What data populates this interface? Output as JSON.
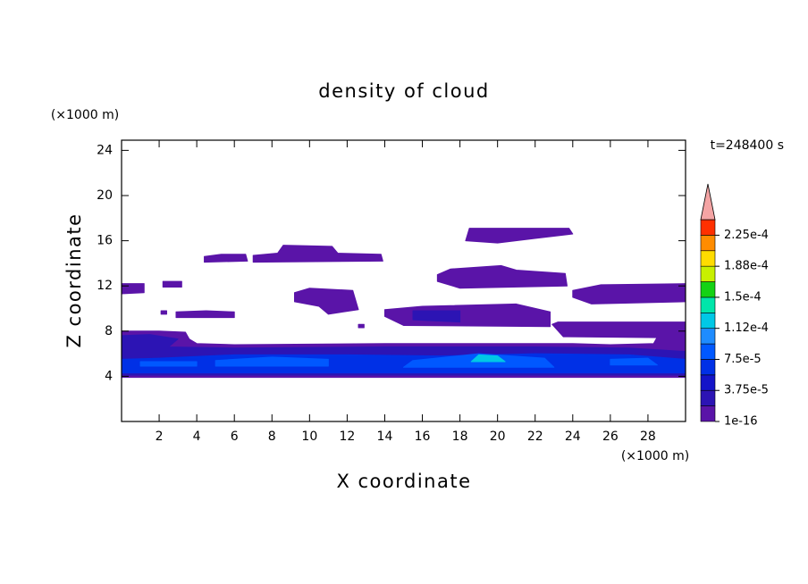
{
  "chart_data": {
    "type": "contour",
    "title": "density of cloud",
    "x_label": "X coordinate",
    "y_label": "Z coordinate",
    "x_unit": "(×1000 m)",
    "y_unit": "(×1000 m)",
    "time_label": "t=248400 s",
    "xlim": [
      0,
      30
    ],
    "ylim": [
      0,
      24.9
    ],
    "xticks": [
      2,
      4,
      6,
      8,
      10,
      12,
      14,
      16,
      18,
      20,
      22,
      24,
      26,
      28
    ],
    "yticks": [
      4,
      8,
      12,
      16,
      20,
      24
    ],
    "colorbar": {
      "levels": [
        1e-16,
        1.875e-05,
        3.75e-05,
        5.625e-05,
        7.5e-05,
        9.375e-05,
        0.0001125,
        0.00013125,
        0.00015,
        0.00016875,
        0.0001875,
        0.00020625,
        0.000225,
        0.00024375
      ],
      "colors": [
        "#5a14a8",
        "#2c14b4",
        "#1414c8",
        "#0030e6",
        "#0058ff",
        "#1e8cff",
        "#00c8e6",
        "#00e6aa",
        "#14d214",
        "#c8f000",
        "#ffdc00",
        "#ff8c00",
        "#ff3000"
      ],
      "extend_color": "#f4a4a4",
      "ticks": [
        {
          "value": 1e-16,
          "label": "1e-16"
        },
        {
          "value": 3.75e-05,
          "label": "3.75e-5"
        },
        {
          "value": 7.5e-05,
          "label": "7.5e-5"
        },
        {
          "value": 0.0001125,
          "label": "1.12e-4"
        },
        {
          "value": 0.00015,
          "label": "1.5e-4"
        },
        {
          "value": 0.0001875,
          "label": "1.88e-4"
        },
        {
          "value": 0.000225,
          "label": "2.25e-4"
        }
      ]
    },
    "regions": [
      {
        "value": 1e-05,
        "points": [
          [
            0,
            3.9
          ],
          [
            30,
            3.9
          ],
          [
            30,
            7.9
          ],
          [
            28.6,
            7.8
          ],
          [
            28.3,
            6.9
          ],
          [
            26,
            6.8
          ],
          [
            24,
            6.9
          ],
          [
            14,
            6.9
          ],
          [
            6,
            6.8
          ],
          [
            4,
            6.9
          ],
          [
            3.6,
            7.3
          ],
          [
            3.4,
            7.9
          ],
          [
            2,
            8.0
          ],
          [
            0,
            8.0
          ]
        ]
      },
      {
        "value": 3e-05,
        "points": [
          [
            0,
            4.1
          ],
          [
            30,
            4.1
          ],
          [
            30,
            6.2
          ],
          [
            27,
            6.5
          ],
          [
            22,
            6.6
          ],
          [
            14,
            6.6
          ],
          [
            6,
            6.5
          ],
          [
            2.5,
            6.6
          ],
          [
            3,
            7.3
          ],
          [
            1.5,
            7.7
          ],
          [
            0,
            7.6
          ]
        ]
      },
      {
        "value": 6e-05,
        "points": [
          [
            0,
            4.3
          ],
          [
            30,
            4.3
          ],
          [
            30,
            5.5
          ],
          [
            27,
            5.9
          ],
          [
            22,
            6.0
          ],
          [
            17,
            5.8
          ],
          [
            12,
            5.9
          ],
          [
            6,
            5.9
          ],
          [
            2,
            5.6
          ],
          [
            0,
            5.5
          ]
        ]
      },
      {
        "value": 8e-05,
        "points": [
          [
            1,
            4.9
          ],
          [
            4,
            4.9
          ],
          [
            4,
            5.3
          ],
          [
            1,
            5.3
          ]
        ]
      },
      {
        "value": 8e-05,
        "points": [
          [
            5,
            4.9
          ],
          [
            11,
            4.9
          ],
          [
            11,
            5.5
          ],
          [
            8,
            5.7
          ],
          [
            5,
            5.4
          ]
        ]
      },
      {
        "value": 8e-05,
        "points": [
          [
            15,
            4.8
          ],
          [
            23,
            4.8
          ],
          [
            22.5,
            5.6
          ],
          [
            19,
            6.0
          ],
          [
            15.5,
            5.4
          ]
        ]
      },
      {
        "value": 8e-05,
        "points": [
          [
            26,
            5.0
          ],
          [
            28.5,
            5.0
          ],
          [
            28,
            5.6
          ],
          [
            26,
            5.5
          ]
        ]
      },
      {
        "value": 0.00012,
        "points": [
          [
            18.6,
            5.3
          ],
          [
            20.4,
            5.3
          ],
          [
            20,
            5.8
          ],
          [
            19,
            5.9
          ]
        ]
      },
      {
        "value": 1e-05,
        "points": [
          [
            0,
            11.3
          ],
          [
            1.2,
            11.4
          ],
          [
            1.2,
            12.2
          ],
          [
            0,
            12.2
          ]
        ]
      },
      {
        "value": 1e-05,
        "points": [
          [
            2.2,
            11.9
          ],
          [
            3.2,
            11.9
          ],
          [
            3.2,
            12.4
          ],
          [
            2.2,
            12.4
          ]
        ]
      },
      {
        "value": 1e-05,
        "points": [
          [
            2.9,
            9.2
          ],
          [
            6,
            9.2
          ],
          [
            6,
            9.7
          ],
          [
            4.5,
            9.8
          ],
          [
            2.9,
            9.7
          ]
        ]
      },
      {
        "value": 1e-05,
        "points": [
          [
            4.4,
            14.1
          ],
          [
            6.7,
            14.2
          ],
          [
            6.6,
            14.8
          ],
          [
            5.3,
            14.8
          ],
          [
            4.4,
            14.6
          ]
        ]
      },
      {
        "value": 1e-05,
        "points": [
          [
            7,
            14.1
          ],
          [
            13.9,
            14.2
          ],
          [
            13.8,
            14.8
          ],
          [
            11.5,
            14.9
          ],
          [
            11.2,
            15.5
          ],
          [
            8.6,
            15.6
          ],
          [
            8.3,
            14.9
          ],
          [
            7,
            14.7
          ]
        ]
      },
      {
        "value": 1e-05,
        "points": [
          [
            9.2,
            10.6
          ],
          [
            10.5,
            10.2
          ],
          [
            11,
            9.5
          ],
          [
            12.6,
            9.9
          ],
          [
            12.3,
            11.6
          ],
          [
            10,
            11.8
          ],
          [
            9.2,
            11.4
          ]
        ]
      },
      {
        "value": 1e-05,
        "points": [
          [
            14,
            9.3
          ],
          [
            15,
            8.5
          ],
          [
            22.8,
            8.4
          ],
          [
            22.8,
            9.7
          ],
          [
            21,
            10.4
          ],
          [
            16,
            10.2
          ],
          [
            14,
            9.9
          ]
        ]
      },
      {
        "value": 3e-05,
        "points": [
          [
            15.5,
            9.0
          ],
          [
            18,
            8.8
          ],
          [
            18,
            9.8
          ],
          [
            15.5,
            9.8
          ]
        ]
      },
      {
        "value": 1e-05,
        "points": [
          [
            16.8,
            12.4
          ],
          [
            18,
            11.8
          ],
          [
            23.7,
            12.0
          ],
          [
            23.6,
            13.1
          ],
          [
            21,
            13.4
          ],
          [
            20.2,
            13.8
          ],
          [
            17.5,
            13.5
          ],
          [
            16.8,
            13.0
          ]
        ]
      },
      {
        "value": 1e-05,
        "points": [
          [
            18.3,
            16.0
          ],
          [
            20,
            15.8
          ],
          [
            22,
            16.2
          ],
          [
            24,
            16.6
          ],
          [
            23.8,
            17.1
          ],
          [
            18.5,
            17.1
          ]
        ]
      },
      {
        "value": 1e-05,
        "points": [
          [
            24,
            11.0
          ],
          [
            25,
            10.4
          ],
          [
            30,
            10.6
          ],
          [
            30,
            12.2
          ],
          [
            25.5,
            12.1
          ],
          [
            24,
            11.6
          ]
        ]
      },
      {
        "value": 1e-05,
        "points": [
          [
            22.9,
            8.6
          ],
          [
            23.5,
            7.5
          ],
          [
            30,
            7.4
          ],
          [
            30,
            8.8
          ],
          [
            23.2,
            8.8
          ]
        ]
      },
      {
        "value": 1e-05,
        "points": [
          [
            2.1,
            9.5
          ],
          [
            2.4,
            9.5
          ],
          [
            2.4,
            9.8
          ],
          [
            2.1,
            9.8
          ]
        ]
      },
      {
        "value": 1e-05,
        "points": [
          [
            12.6,
            8.3
          ],
          [
            12.9,
            8.3
          ],
          [
            12.9,
            8.6
          ],
          [
            12.6,
            8.6
          ]
        ]
      }
    ]
  }
}
